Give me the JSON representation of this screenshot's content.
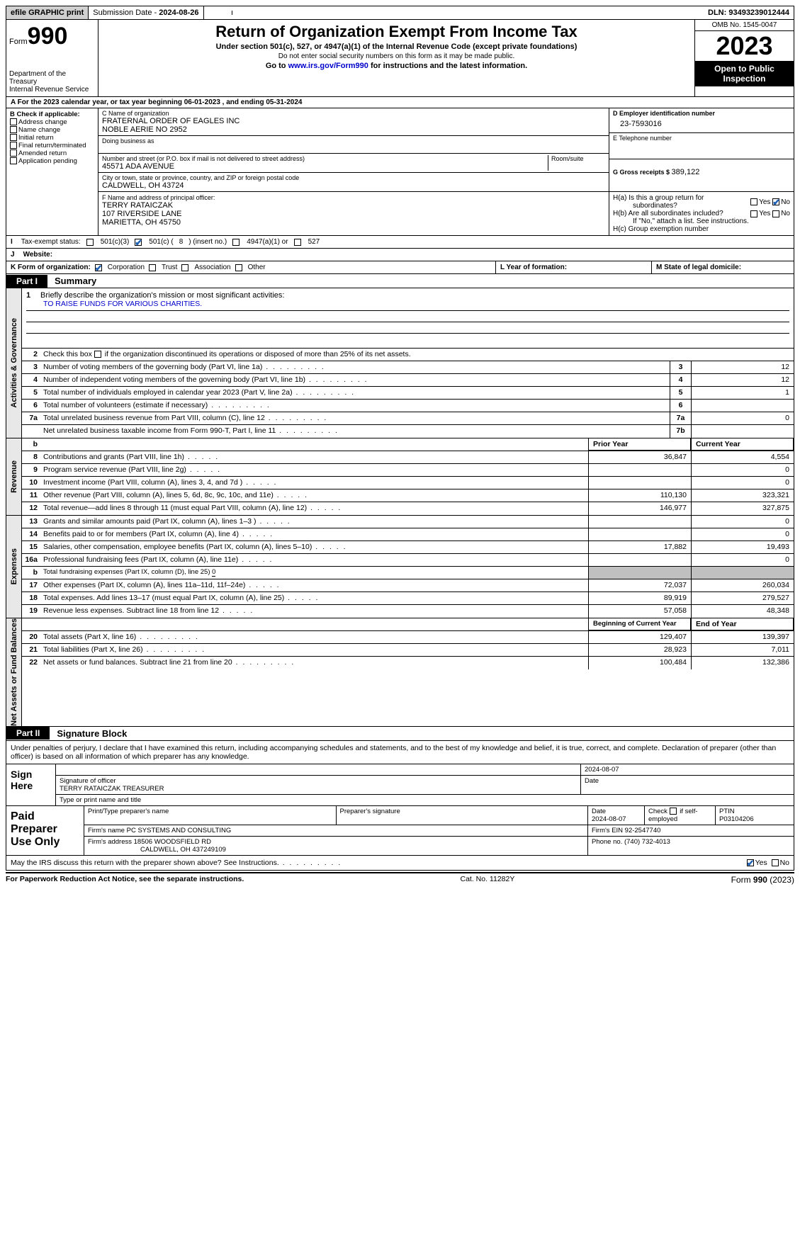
{
  "topbar": {
    "efile": "efile GRAPHIC print",
    "sub_label": "Submission Date - ",
    "sub_date": "2024-08-26",
    "dln_label": "DLN: ",
    "dln": "93493239012444"
  },
  "header": {
    "form_word": "Form",
    "form_num": "990",
    "dept": "Department of the Treasury",
    "irs": "Internal Revenue Service",
    "title": "Return of Organization Exempt From Income Tax",
    "sub1": "Under section 501(c), 527, or 4947(a)(1) of the Internal Revenue Code (except private foundations)",
    "sub2": "Do not enter social security numbers on this form as it may be made public.",
    "sub3a": "Go to ",
    "sub3_link": "www.irs.gov/Form990",
    "sub3b": " for instructions and the latest information.",
    "omb_label": "OMB No. ",
    "omb": "1545-0047",
    "year": "2023",
    "open": "Open to Public Inspection"
  },
  "rowA": {
    "pre": "A For the 2023 calendar year, or tax year beginning ",
    "begin": "06-01-2023",
    "mid": "   , and ending ",
    "end": "05-31-2024"
  },
  "boxB": {
    "hdr": "B Check if applicable:",
    "opts": [
      "Address change",
      "Name change",
      "Initial return",
      "Final return/terminated",
      "Amended return",
      "Application pending"
    ]
  },
  "boxC": {
    "name_lbl": "C Name of organization",
    "name1": "FRATERNAL ORDER OF EAGLES INC",
    "name2": "NOBLE AERIE NO 2952",
    "dba_lbl": "Doing business as",
    "street_lbl": "Number and street (or P.O. box if mail is not delivered to street address)",
    "street": "45571 ADA AVENUE",
    "room_lbl": "Room/suite",
    "city_lbl": "City or town, state or province, country, and ZIP or foreign postal code",
    "city": "CALDWELL, OH  43724"
  },
  "boxD": {
    "lbl": "D Employer identification number",
    "val": "23-7593016"
  },
  "boxE": {
    "lbl": "E Telephone number"
  },
  "boxG": {
    "lbl": "G Gross receipts $ ",
    "val": "389,122"
  },
  "boxF": {
    "lbl": "F  Name and address of principal officer:",
    "l1": "TERRY RATAICZAK",
    "l2": "107 RIVERSIDE LANE",
    "l3": "MARIETTA, OH  45750"
  },
  "boxH": {
    "a1": "H(a)  Is this a group return for",
    "a2": "subordinates?",
    "b1": "H(b)  Are all subordinates included?",
    "b2": "If \"No,\" attach a list. See instructions.",
    "c": "H(c)  Group exemption number",
    "yes": "Yes",
    "no": "No"
  },
  "boxI": {
    "lbl": "Tax-exempt status:",
    "o1": "501(c)(3)",
    "o2a": "501(c) ( ",
    "o2n": "8",
    "o2b": " ) (insert no.)",
    "o3": "4947(a)(1) or",
    "o4": "527"
  },
  "boxJ": {
    "lbl": "Website:"
  },
  "boxK": {
    "lbl": "K Form of organization:",
    "o1": "Corporation",
    "o2": "Trust",
    "o3": "Association",
    "o4": "Other"
  },
  "boxL": {
    "lbl": "L Year of formation:"
  },
  "boxM": {
    "lbl": "M State of legal domicile:"
  },
  "part1": {
    "tab": "Part I",
    "title": "Summary"
  },
  "sect_ag": "Activities & Governance",
  "sect_rev": "Revenue",
  "sect_exp": "Expenses",
  "sect_na": "Net Assets or Fund Balances",
  "line1": {
    "n": "1",
    "t": "Briefly describe the organization's mission or most significant activities:",
    "mission": "TO RAISE FUNDS FOR VARIOUS CHARITIES."
  },
  "line2": {
    "n": "2",
    "t": "Check this box ",
    "t2": " if the organization discontinued its operations or disposed of more than 25% of its net assets."
  },
  "lines_ag": [
    {
      "n": "3",
      "t": "Number of voting members of the governing body (Part VI, line 1a)",
      "box": "3",
      "v": "12"
    },
    {
      "n": "4",
      "t": "Number of independent voting members of the governing body (Part VI, line 1b)",
      "box": "4",
      "v": "12"
    },
    {
      "n": "5",
      "t": "Total number of individuals employed in calendar year 2023 (Part V, line 2a)",
      "box": "5",
      "v": "1"
    },
    {
      "n": "6",
      "t": "Total number of volunteers (estimate if necessary)",
      "box": "6",
      "v": ""
    },
    {
      "n": "7a",
      "t": "Total unrelated business revenue from Part VIII, column (C), line 12",
      "box": "7a",
      "v": "0"
    },
    {
      "n": "",
      "t": "Net unrelated business taxable income from Form 990-T, Part I, line 11",
      "box": "7b",
      "v": ""
    }
  ],
  "col_hdr": {
    "b": "b",
    "py": "Prior Year",
    "cy": "Current Year"
  },
  "lines_rev": [
    {
      "n": "8",
      "t": "Contributions and grants (Part VIII, line 1h)",
      "py": "36,847",
      "cy": "4,554"
    },
    {
      "n": "9",
      "t": "Program service revenue (Part VIII, line 2g)",
      "py": "",
      "cy": "0"
    },
    {
      "n": "10",
      "t": "Investment income (Part VIII, column (A), lines 3, 4, and 7d )",
      "py": "",
      "cy": "0"
    },
    {
      "n": "11",
      "t": "Other revenue (Part VIII, column (A), lines 5, 6d, 8c, 9c, 10c, and 11e)",
      "py": "110,130",
      "cy": "323,321"
    },
    {
      "n": "12",
      "t": "Total revenue—add lines 8 through 11 (must equal Part VIII, column (A), line 12)",
      "py": "146,977",
      "cy": "327,875"
    }
  ],
  "lines_exp": [
    {
      "n": "13",
      "t": "Grants and similar amounts paid (Part IX, column (A), lines 1–3 )",
      "py": "",
      "cy": "0"
    },
    {
      "n": "14",
      "t": "Benefits paid to or for members (Part IX, column (A), line 4)",
      "py": "",
      "cy": "0"
    },
    {
      "n": "15",
      "t": "Salaries, other compensation, employee benefits (Part IX, column (A), lines 5–10)",
      "py": "17,882",
      "cy": "19,493"
    },
    {
      "n": "16a",
      "t": "Professional fundraising fees (Part IX, column (A), line 11e)",
      "py": "",
      "cy": "0"
    },
    {
      "n": "b",
      "t": "Total fundraising expenses (Part IX, column (D), line 25) ",
      "u": "0",
      "shade": true
    },
    {
      "n": "17",
      "t": "Other expenses (Part IX, column (A), lines 11a–11d, 11f–24e)",
      "py": "72,037",
      "cy": "260,034"
    },
    {
      "n": "18",
      "t": "Total expenses. Add lines 13–17 (must equal Part IX, column (A), line 25)",
      "py": "89,919",
      "cy": "279,527"
    },
    {
      "n": "19",
      "t": "Revenue less expenses. Subtract line 18 from line 12",
      "py": "57,058",
      "cy": "48,348"
    }
  ],
  "col_hdr2": {
    "py": "Beginning of Current Year",
    "cy": "End of Year"
  },
  "lines_na": [
    {
      "n": "20",
      "t": "Total assets (Part X, line 16)",
      "py": "129,407",
      "cy": "139,397"
    },
    {
      "n": "21",
      "t": "Total liabilities (Part X, line 26)",
      "py": "28,923",
      "cy": "7,011"
    },
    {
      "n": "22",
      "t": "Net assets or fund balances. Subtract line 21 from line 20",
      "py": "100,484",
      "cy": "132,386"
    }
  ],
  "part2": {
    "tab": "Part II",
    "title": "Signature Block"
  },
  "perjury": "Under penalties of perjury, I declare that I have examined this return, including accompanying schedules and statements, and to the best of my knowledge and belief, it is true, correct, and complete. Declaration of preparer (other than officer) is based on all information of which preparer has any knowledge.",
  "sign": {
    "here": "Sign Here",
    "date_top": "2024-08-07",
    "sig_lbl": "Signature of officer",
    "name": "TERRY RATAICZAK  TREASURER",
    "type_lbl": "Type or print name and title",
    "date_lbl": "Date"
  },
  "paid": {
    "here": "Paid Preparer Use Only",
    "c1": "Print/Type preparer's name",
    "c2": "Preparer's signature",
    "c3": "Date",
    "c3v": "2024-08-07",
    "c4a": "Check",
    "c4b": "if self-employed",
    "c5": "PTIN",
    "c5v": "P03104206",
    "firm_name_lbl": "Firm's name   ",
    "firm_name": "PC SYSTEMS AND CONSULTING",
    "firm_ein_lbl": "Firm's EIN  ",
    "firm_ein": "92-2547740",
    "firm_addr_lbl": "Firm's address ",
    "firm_addr1": "18506 WOODSFIELD RD",
    "firm_addr2": "CALDWELL, OH  437249109",
    "phone_lbl": "Phone no. ",
    "phone": "(740) 732-4013"
  },
  "discuss": {
    "t": "May the IRS discuss this return with the preparer shown above? See Instructions.",
    "yes": "Yes",
    "no": "No"
  },
  "footer": {
    "l": "For Paperwork Reduction Act Notice, see the separate instructions.",
    "c": "Cat. No. 11282Y",
    "r": "Form 990 (2023)"
  }
}
